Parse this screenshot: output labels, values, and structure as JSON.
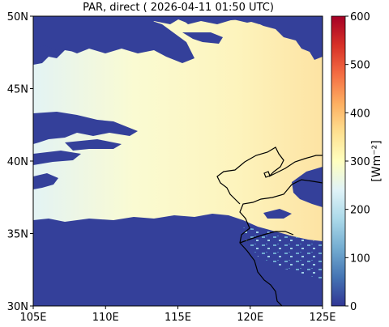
{
  "title": "PAR, direct ( 2026-04-11 01:50 UTC)",
  "map": {
    "lon_range": [
      105,
      125
    ],
    "lat_range": [
      30,
      50
    ],
    "x_ticks": [
      {
        "value": 105,
        "label": "105E"
      },
      {
        "value": 110,
        "label": "110E"
      },
      {
        "value": 115,
        "label": "115E"
      },
      {
        "value": 120,
        "label": "120E"
      },
      {
        "value": 125,
        "label": "125E"
      }
    ],
    "y_ticks": [
      {
        "value": 30,
        "label": "30N"
      },
      {
        "value": 35,
        "label": "35N"
      },
      {
        "value": 40,
        "label": "40N"
      },
      {
        "value": 45,
        "label": "45N"
      },
      {
        "value": 50,
        "label": "50N"
      }
    ]
  },
  "colorbar": {
    "range": [
      0,
      600
    ],
    "ticks": [
      {
        "value": 0,
        "label": "0"
      },
      {
        "value": 100,
        "label": "100"
      },
      {
        "value": 200,
        "label": "200"
      },
      {
        "value": 300,
        "label": "300"
      },
      {
        "value": 400,
        "label": "400"
      },
      {
        "value": 500,
        "label": "500"
      },
      {
        "value": 600,
        "label": "600"
      }
    ],
    "unit_label": "[Wm⁻²]",
    "colors": [
      "#313695",
      "#4575b4",
      "#74add1",
      "#abd9e9",
      "#e0f3f8",
      "#ffffbf",
      "#fee090",
      "#fdae61",
      "#f46d43",
      "#d73027",
      "#a50026"
    ]
  },
  "colors": {
    "cloud": "#34409a",
    "field_west": "#e3f3f4",
    "field_mid": "#fdf9c8",
    "field_east": "#fde6a6",
    "coastline": "#000000"
  }
}
